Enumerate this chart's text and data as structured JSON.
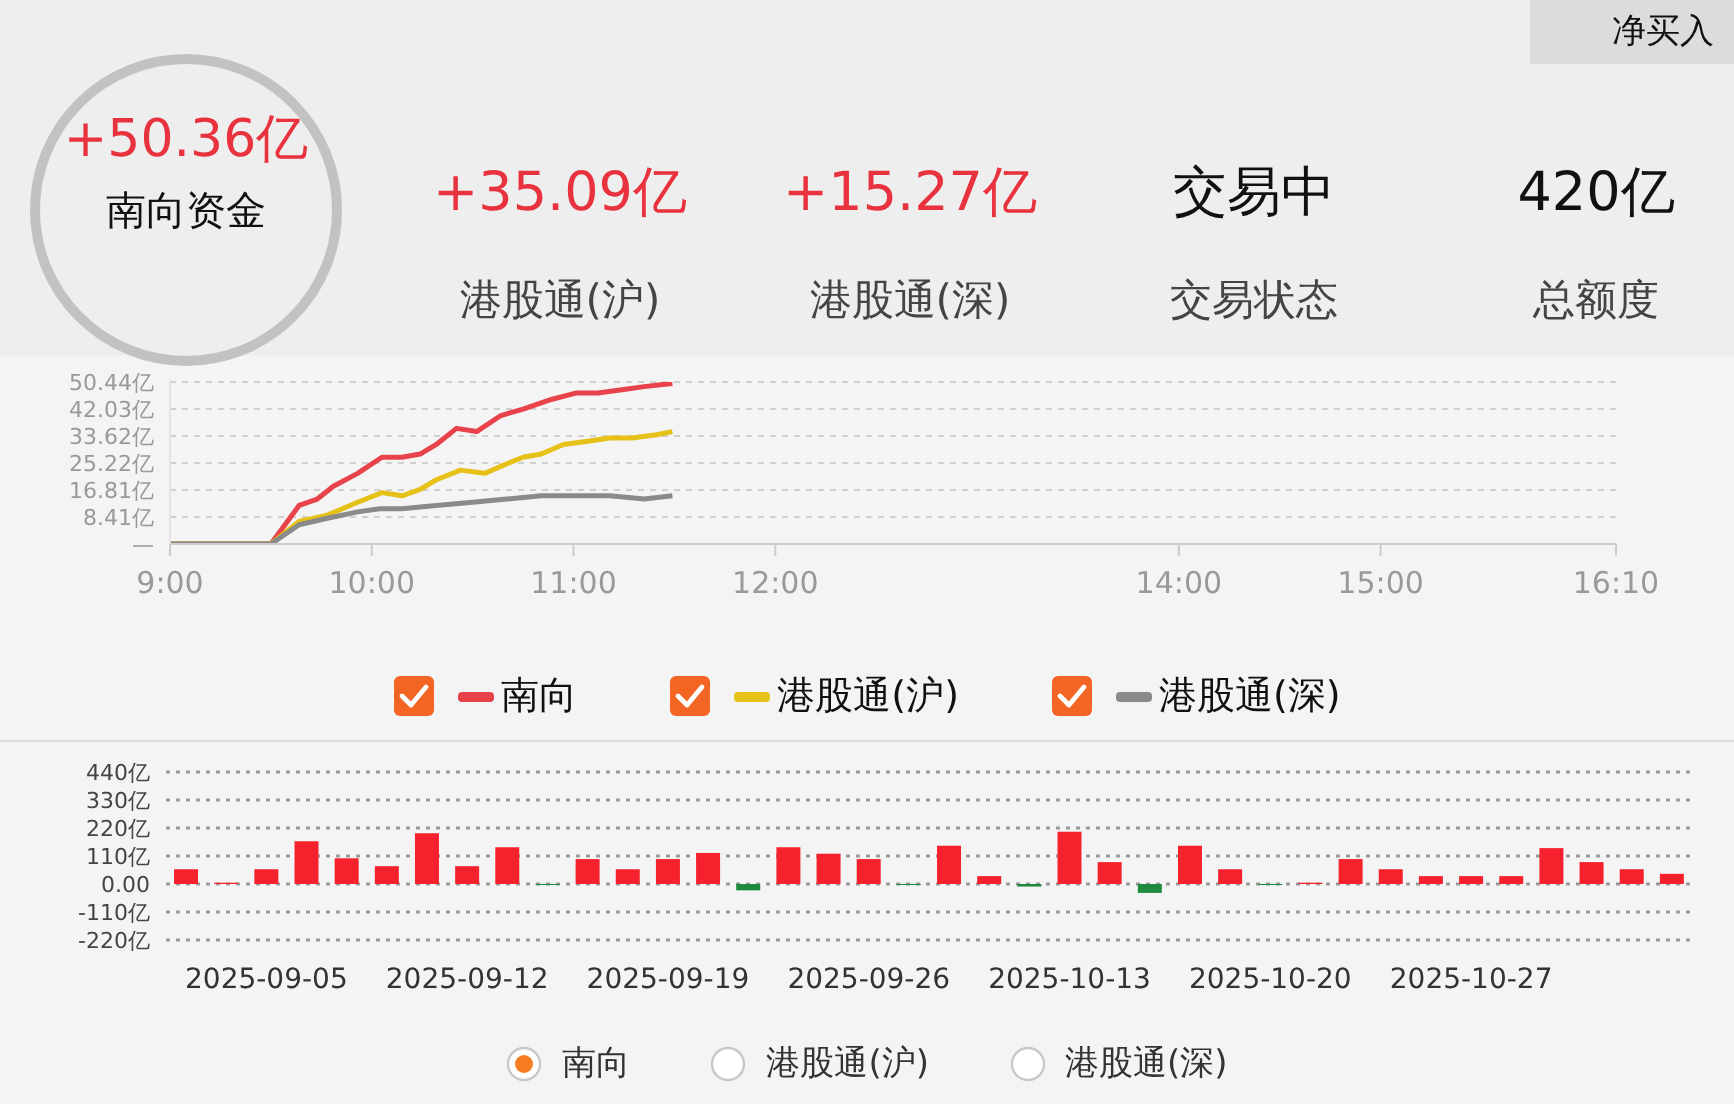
{
  "chart_data": [
    {
      "type": "other",
      "annotations": [
        "净买入"
      ],
      "categories": [
        "南向资金",
        "港股通(沪)",
        "港股通(深)",
        "交易状态",
        "总额度"
      ],
      "value_labels": [
        "+50.36亿",
        "+35.09亿",
        "+15.27亿",
        "交易中",
        "420亿"
      ]
    },
    {
      "type": "line",
      "xlim": [
        9,
        16.1667
      ],
      "xticks": [
        {
          "value": 9,
          "label": "9:00"
        },
        {
          "value": 10,
          "label": "10:00"
        },
        {
          "value": 11,
          "label": "11:00"
        },
        {
          "value": 12,
          "label": "12:00"
        },
        {
          "value": 14,
          "label": "14:00"
        },
        {
          "value": 15,
          "label": "15:00"
        },
        {
          "value": 16.1667,
          "label": "16:10"
        }
      ],
      "ylim": [
        0,
        50.44
      ],
      "yticks": [
        {
          "value": 0,
          "label": "—"
        },
        {
          "value": 8.41,
          "label": "8.41亿"
        },
        {
          "value": 16.81,
          "label": "16.81亿"
        },
        {
          "value": 25.22,
          "label": "25.22亿"
        },
        {
          "value": 33.62,
          "label": "33.62亿"
        },
        {
          "value": 42.03,
          "label": "42.03亿"
        },
        {
          "value": 50.44,
          "label": "50.44亿"
        }
      ],
      "grid": "y",
      "legend": "bottom",
      "marker": "none",
      "line_style": "solid",
      "series": [
        {
          "name": "南向",
          "color": "#e8424b",
          "x": [
            9,
            9.5,
            9.64,
            9.73,
            9.81,
            9.93,
            10.05,
            10.15,
            10.24,
            10.32,
            10.42,
            10.52,
            10.64,
            10.75,
            10.89,
            11.01,
            11.12,
            11.24,
            11.35,
            11.49
          ],
          "values": [
            0,
            0,
            12,
            14,
            18,
            22,
            27,
            27,
            28,
            31,
            36,
            35,
            40,
            42,
            45,
            47,
            47,
            48,
            49,
            50
          ]
        },
        {
          "name": "港股通(沪)",
          "color": "#e6c117",
          "x": [
            9,
            9.5,
            9.64,
            9.78,
            9.93,
            10.05,
            10.15,
            10.24,
            10.32,
            10.44,
            10.56,
            10.67,
            10.75,
            10.84,
            10.95,
            11.07,
            11.18,
            11.29,
            11.41,
            11.49
          ],
          "values": [
            0,
            0,
            7,
            9,
            13,
            16,
            15,
            17,
            20,
            23,
            22,
            25,
            27,
            28,
            31,
            32,
            33,
            33,
            34,
            35
          ]
        },
        {
          "name": "港股通(深)",
          "color": "#8a8a8a",
          "x": [
            9,
            9.5,
            9.64,
            9.78,
            9.93,
            10.04,
            10.15,
            10.32,
            10.5,
            10.67,
            10.84,
            11.01,
            11.18,
            11.35,
            11.49
          ],
          "values": [
            0,
            0,
            6,
            8,
            10,
            11,
            11,
            12,
            13,
            14,
            15,
            15,
            15,
            14,
            15
          ]
        }
      ]
    },
    {
      "type": "bar",
      "categories": [
        null,
        null,
        "2025-09-05",
        null,
        null,
        null,
        null,
        "2025-09-12",
        null,
        null,
        null,
        null,
        "2025-09-19",
        null,
        null,
        null,
        null,
        "2025-09-26",
        null,
        null,
        null,
        null,
        "2025-10-13",
        null,
        null,
        null,
        null,
        "2025-10-20",
        null,
        null,
        null,
        null,
        "2025-10-27",
        null,
        null,
        null,
        null,
        null
      ],
      "ylim": [
        -220,
        440
      ],
      "yticks": [
        {
          "value": -220,
          "label": "-220亿"
        },
        {
          "value": -110,
          "label": "-110亿"
        },
        {
          "value": 0,
          "label": "0.00"
        },
        {
          "value": 110,
          "label": "110亿"
        },
        {
          "value": 220,
          "label": "220亿"
        },
        {
          "value": 330,
          "label": "330亿"
        },
        {
          "value": 440,
          "label": "440亿"
        }
      ],
      "grid": "y",
      "legend": "bottom",
      "annotations": [
        "港股通(沪)",
        "港股通(深)"
      ],
      "series": [
        {
          "name": "南向",
          "values": [
            58,
            5,
            58,
            168,
            101,
            70,
            199,
            70,
            144,
            -4,
            98,
            58,
            98,
            122,
            -25,
            144,
            119,
            98,
            -4,
            150,
            31,
            -10,
            205,
            86,
            -35,
            150,
            58,
            -4,
            5,
            98,
            58,
            31,
            31,
            31,
            141,
            86,
            58,
            40
          ],
          "colors": [
            "#f5222d",
            "#f5222d",
            "#f5222d",
            "#f5222d",
            "#f5222d",
            "#f5222d",
            "#f5222d",
            "#f5222d",
            "#f5222d",
            "#1e8a3e",
            "#f5222d",
            "#f5222d",
            "#f5222d",
            "#f5222d",
            "#1e8a3e",
            "#f5222d",
            "#f5222d",
            "#f5222d",
            "#1e8a3e",
            "#f5222d",
            "#f5222d",
            "#1e8a3e",
            "#f5222d",
            "#f5222d",
            "#1e8a3e",
            "#f5222d",
            "#f5222d",
            "#1e8a3e",
            "#f5222d",
            "#f5222d",
            "#f5222d",
            "#f5222d",
            "#f5222d",
            "#f5222d",
            "#f5222d",
            "#f5222d",
            "#f5222d",
            "#f5222d"
          ]
        }
      ]
    }
  ]
}
